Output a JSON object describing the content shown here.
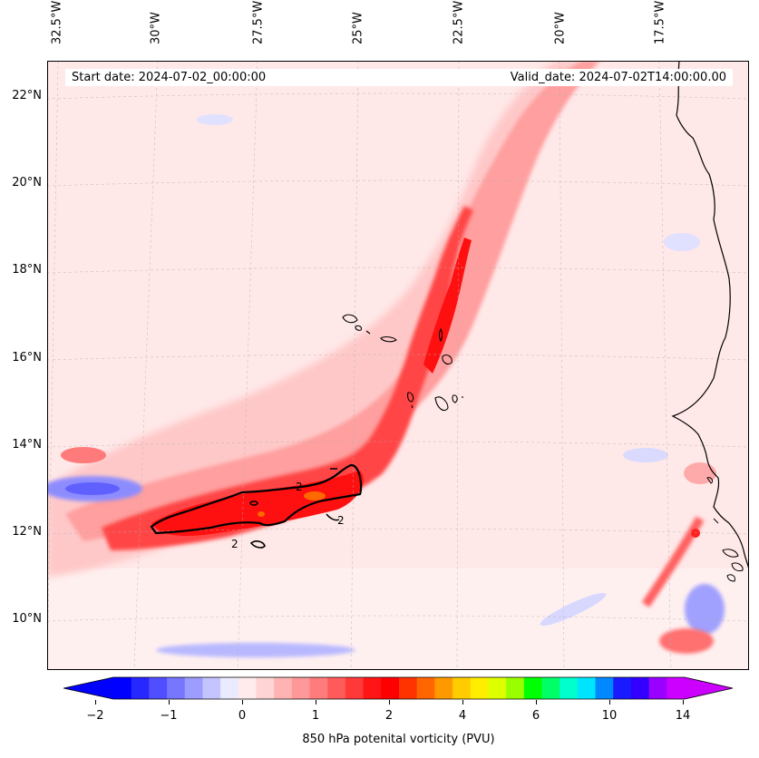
{
  "map": {
    "start_date": "Start date: 2024-07-02_00:00:00",
    "valid_date": "Valid_date: 2024-07-02T14:00:00.00",
    "lon_labels": [
      "32.5°W",
      "30°W",
      "27.5°W",
      "25°W",
      "22.5°W",
      "20°W",
      "17.5°W"
    ],
    "lat_labels": [
      "22°N",
      "20°N",
      "18°N",
      "16°N",
      "14°N",
      "12°N",
      "10°N"
    ],
    "contour_labels": [
      "2",
      "2",
      "2"
    ]
  },
  "colorbar": {
    "label": "850 hPa potenital vorticity (PVU)",
    "ticks": [
      "−2",
      "−1",
      "0",
      "1",
      "2",
      "4",
      "6",
      "10",
      "14"
    ],
    "colors": [
      "#0000ff",
      "#2727ff",
      "#4f4fff",
      "#7676ff",
      "#9d9dff",
      "#c4c4ff",
      "#ebebff",
      "#ffebeb",
      "#ffd4d4",
      "#ffb3b3",
      "#ff9999",
      "#ff7c7c",
      "#ff5b5b",
      "#ff3838",
      "#ff1515",
      "#ff0000",
      "#ff3300",
      "#ff6600",
      "#ff9900",
      "#ffcc00",
      "#ffee00",
      "#ddff00",
      "#99ff00",
      "#00ff00",
      "#00ff66",
      "#00ffcc",
      "#00e5ff",
      "#0088ff",
      "#1a1aff",
      "#3300ff",
      "#9900ff",
      "#cc00ff"
    ],
    "extend_low_color": "#0000ff",
    "extend_high_color": "#cc00ff"
  },
  "colors": {
    "background_field": "#ffe6e6",
    "strong_pv": "#ff1a1a",
    "weak_neg_pv": "#aab0ff",
    "coastline": "#000000"
  }
}
